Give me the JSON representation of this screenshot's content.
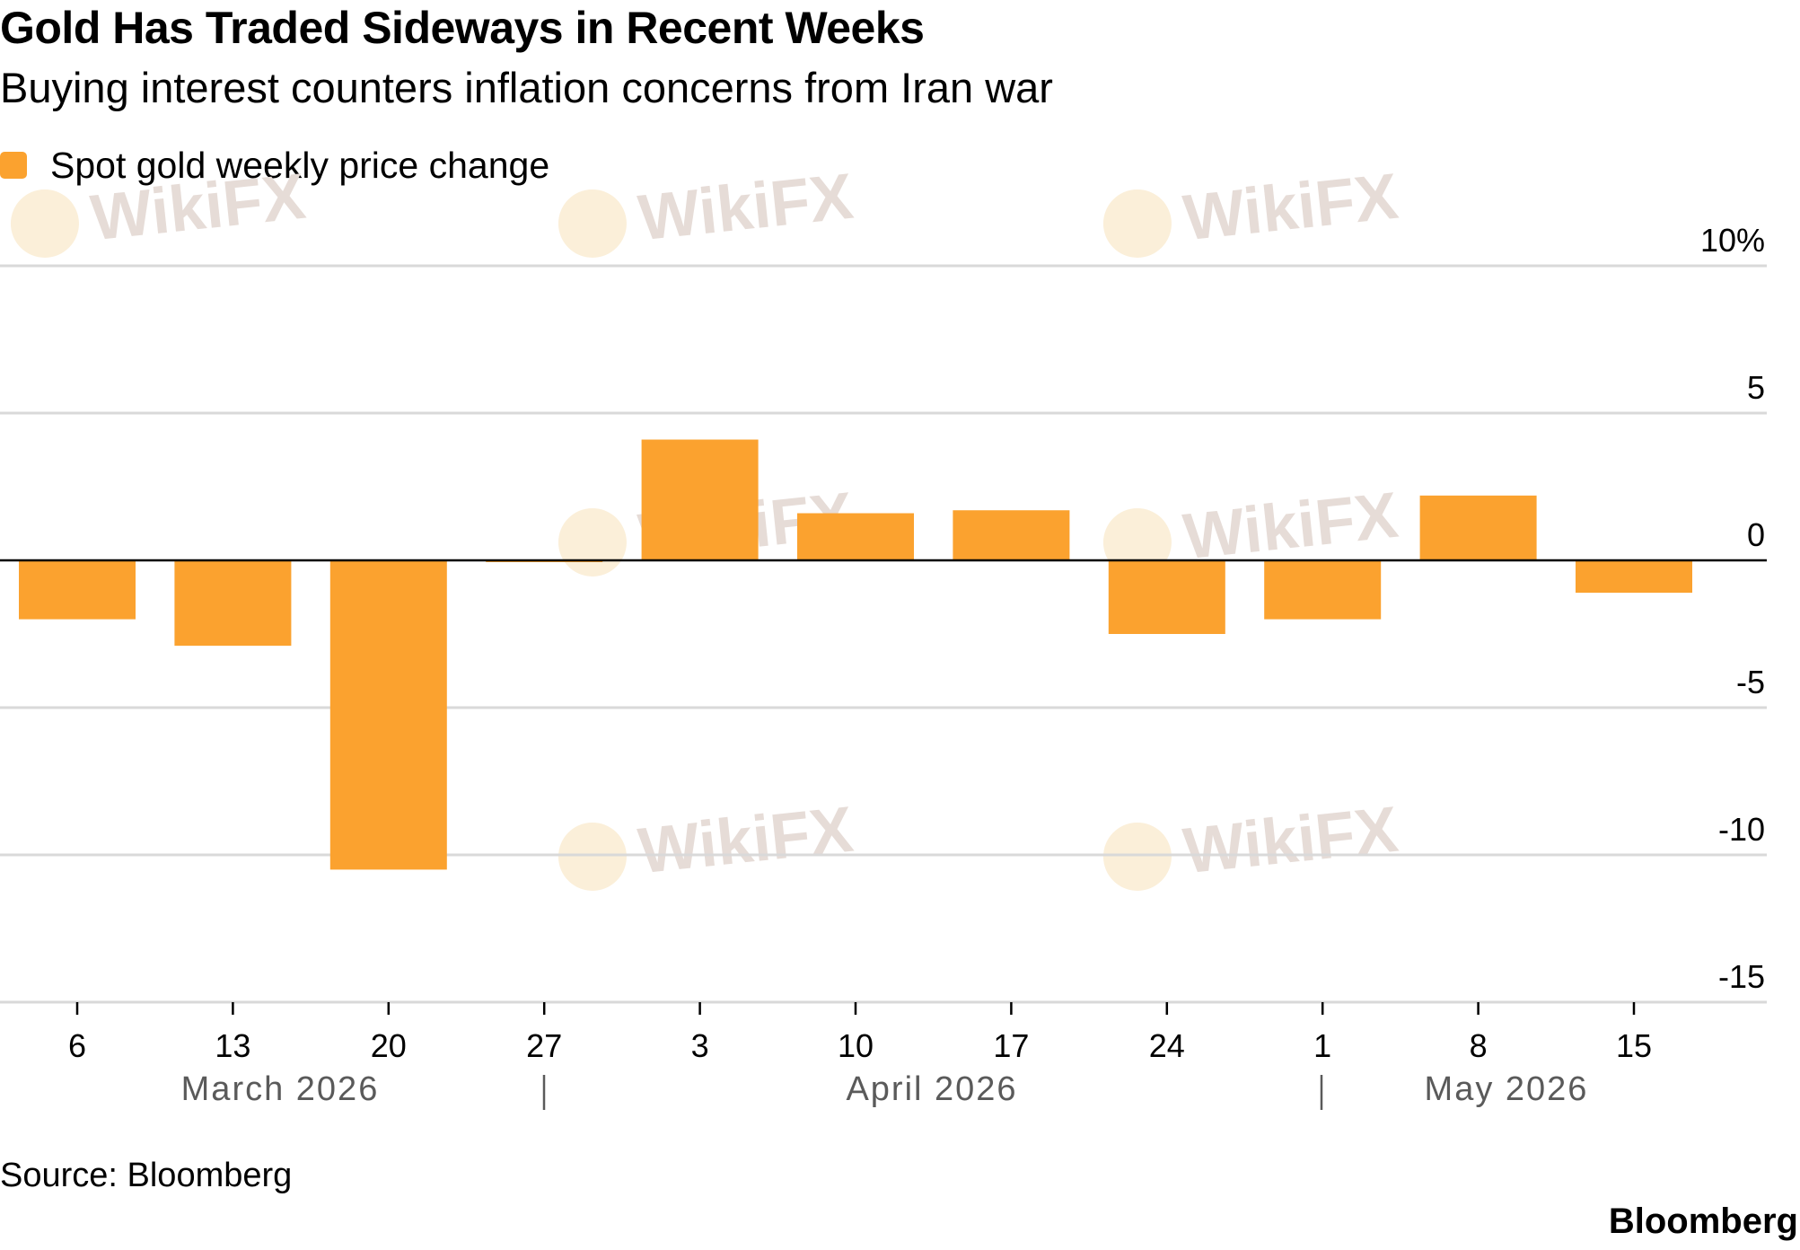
{
  "header": {
    "title": "Gold Has Traded Sideways in Recent Weeks",
    "subtitle": "Buying interest counters inflation concerns from Iran war"
  },
  "legend": {
    "label": "Spot gold weekly price change"
  },
  "footer": {
    "source": "Source: Bloomberg",
    "brand": "Bloomberg"
  },
  "watermark": {
    "text": "WikiFX"
  },
  "colors": {
    "bar": "#FBA22F",
    "grid": "#D9D9D9",
    "zero_line": "#000000",
    "month_label": "#5A5A5A",
    "watermark": "#E6DCD7"
  },
  "chart_data": {
    "type": "bar",
    "categories": [
      "6",
      "13",
      "20",
      "27",
      "3",
      "10",
      "17",
      "24",
      "1",
      "8",
      "15"
    ],
    "series": [
      {
        "name": "Spot gold weekly price change",
        "values": [
          -2.0,
          -2.9,
          -10.5,
          -0.05,
          4.1,
          1.6,
          1.7,
          -2.5,
          -2.0,
          2.2,
          -1.1
        ]
      }
    ],
    "months": [
      "March 2026",
      "April 2026",
      "May 2026"
    ],
    "y_ticks": [
      "10%",
      "5",
      "0",
      "-5",
      "-10",
      "-15"
    ],
    "y_tick_values": [
      10,
      5,
      0,
      -5,
      -10,
      -15
    ],
    "ylim": [
      -15,
      10
    ],
    "xlabel": "",
    "ylabel": "",
    "grid": true
  }
}
